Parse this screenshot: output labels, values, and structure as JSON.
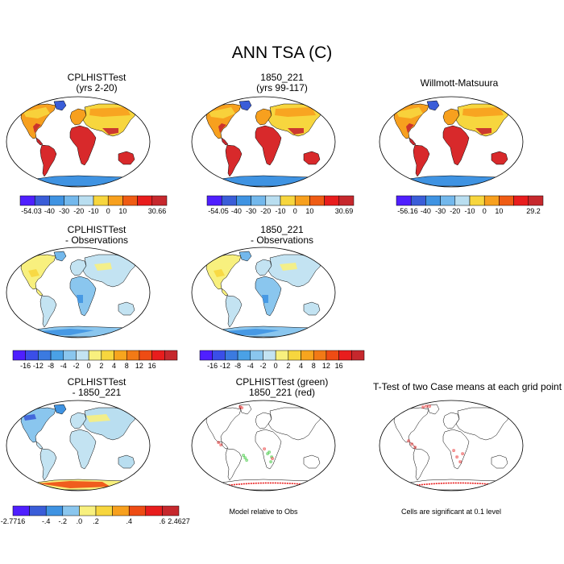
{
  "figure": {
    "title": "ANN TSA (C)"
  },
  "panels": [
    {
      "id": "p1",
      "title": "CPLHISTTest\n(yrs 2-20)",
      "type": "temp",
      "note": ""
    },
    {
      "id": "p2",
      "title": "1850_221\n(yrs 99-117)",
      "type": "temp",
      "note": ""
    },
    {
      "id": "p3",
      "title": "Willmott-Matsuura",
      "type": "temp",
      "note": ""
    },
    {
      "id": "p4",
      "title": "CPLHISTTest\n- Observations",
      "type": "diff",
      "note": ""
    },
    {
      "id": "p5",
      "title": "1850_221\n- Observations",
      "type": "diff",
      "note": ""
    },
    {
      "id": "p6",
      "title": "CPLHISTTest\n- 1850_221",
      "type": "diff2",
      "note": ""
    },
    {
      "id": "p7",
      "title": "CPLHISTTest (green)\n1850_221 (red)",
      "type": "sig2",
      "note": "Model relative to Obs"
    },
    {
      "id": "p8",
      "title": "T-Test of two Case means at each grid point",
      "type": "sig1",
      "note": "Cells are significant at 0.1 level"
    }
  ],
  "colorbars": [
    {
      "id": "cb1",
      "colors": [
        "#4f1fff",
        "#3a5dd8",
        "#3f93e2",
        "#73b8ec",
        "#b9def0",
        "#f7d63e",
        "#f7a01e",
        "#ef5c14",
        "#e81d1d",
        "#c6282d"
      ],
      "labels": [
        "-54.03",
        "",
        "-40",
        "-30",
        "-20",
        "-10",
        "0",
        "10",
        "",
        "30.66"
      ]
    },
    {
      "id": "cb2",
      "colors": [
        "#4f1fff",
        "#3a5dd8",
        "#3f93e2",
        "#73b8ec",
        "#b9def0",
        "#f7d63e",
        "#f7a01e",
        "#ef5c14",
        "#e81d1d",
        "#c6282d"
      ],
      "labels": [
        "-54.05",
        "",
        "-40",
        "-30",
        "-20",
        "-10",
        "0",
        "10",
        "",
        "30.69"
      ]
    },
    {
      "id": "cb3",
      "colors": [
        "#4f1fff",
        "#3a5dd8",
        "#3f93e2",
        "#73b8ec",
        "#b9def0",
        "#f7d63e",
        "#f7a01e",
        "#ef5c14",
        "#e81d1d",
        "#c6282d"
      ],
      "labels": [
        "-56.16",
        "",
        "-40",
        "-30",
        "-20",
        "-10",
        "0",
        "10",
        "",
        "29.2"
      ]
    },
    {
      "id": "cb4",
      "colors": [
        "#4f1fff",
        "#3a4ee8",
        "#3b7ae0",
        "#4aa1e6",
        "#8ac6ee",
        "#c3e3f2",
        "#f8f07e",
        "#f7d63e",
        "#f7a51e",
        "#f27a16",
        "#ee4c14",
        "#e81d1d",
        "#c6282d"
      ],
      "labels": [
        "",
        "-16",
        "-12",
        "-8",
        "-4",
        "-2",
        "0",
        "2",
        "4",
        "8",
        "12",
        "16",
        ""
      ]
    },
    {
      "id": "cb5",
      "colors": [
        "#4f1fff",
        "#3a4ee8",
        "#3b7ae0",
        "#4aa1e6",
        "#8ac6ee",
        "#c3e3f2",
        "#f8f07e",
        "#f7d63e",
        "#f7a51e",
        "#f27a16",
        "#ee4c14",
        "#e81d1d",
        "#c6282d"
      ],
      "labels": [
        "",
        "-16",
        "-12",
        "-8",
        "-4",
        "-2",
        "0",
        "2",
        "4",
        "8",
        "12",
        "16",
        ""
      ]
    },
    {
      "id": "cb6",
      "colors": [
        "#4f1fff",
        "#3a5dd8",
        "#3f93e2",
        "#8ac6ee",
        "#f8f07e",
        "#f7d63e",
        "#f7a01e",
        "#ee4c14",
        "#e81d1d",
        "#c6282d"
      ],
      "labels": [
        "-2.7716",
        "",
        "-.4",
        "-.2",
        ".0",
        ".2",
        "",
        ".4",
        "",
        ".6",
        "2.4627"
      ]
    }
  ]
}
